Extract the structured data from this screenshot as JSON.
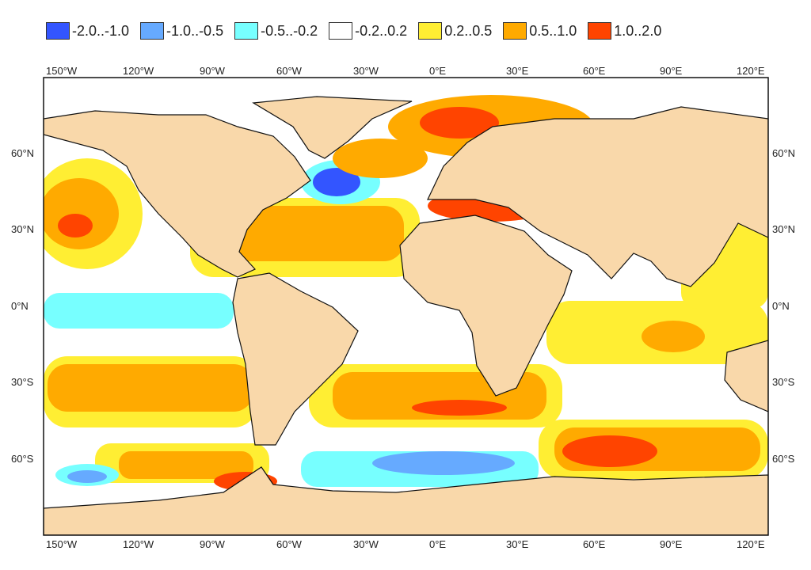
{
  "legend": [
    {
      "label": "-2.0..-1.0",
      "color": "#3355ff"
    },
    {
      "label": "-1.0..-0.5",
      "color": "#66aaff"
    },
    {
      "label": "-0.5..-0.2",
      "color": "#77ffff"
    },
    {
      "label": "-0.2..0.2",
      "color": "#ffffff"
    },
    {
      "label": "0.2..0.5",
      "color": "#ffee33"
    },
    {
      "label": "0.5..1.0",
      "color": "#ffaa00"
    },
    {
      "label": "1.0..2.0",
      "color": "#ff4400"
    }
  ],
  "lon_labels": [
    "150°W",
    "120°W",
    "90°W",
    "60°W",
    "30°W",
    "0°E",
    "30°E",
    "60°E",
    "90°E",
    "120°E"
  ],
  "lat_labels": [
    "60°N",
    "30°N",
    "0°N",
    "30°S",
    "60°S"
  ],
  "land_color": "#f9d8aa"
}
